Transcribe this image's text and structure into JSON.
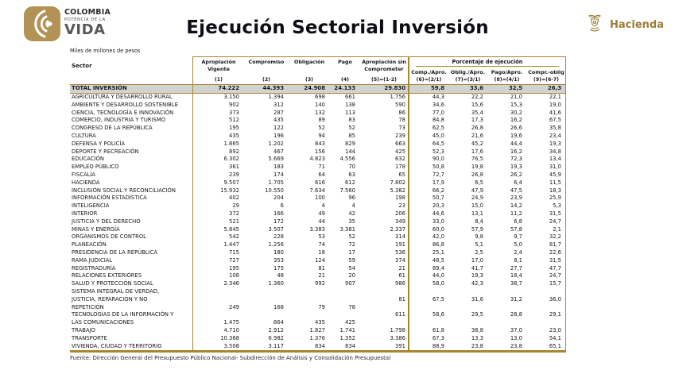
{
  "branding": {
    "colombia_line1": "COLOMBIA",
    "colombia_line2": "POTENCIA DE LA",
    "colombia_line3": "VIDA",
    "hacienda_label": "Hacienda"
  },
  "title": "Ejecución Sectorial Inversión",
  "units_note": "Miles de millones de pesos",
  "source_note": "Fuente: Dirección General del Presupuesto Público Nacional- Subdirección de Análisis y Consolidación Presupuestal",
  "colors": {
    "gold_border": "#A8862F",
    "logo_gold": "#B39355",
    "hacienda_gold": "#9C7C35",
    "total_row_bg": "#D2D2D2",
    "text": "#17171F"
  },
  "table": {
    "col_headers": {
      "sector": "Sector",
      "cols": [
        {
          "name": "Apropiación Vigente",
          "formula": "(1)"
        },
        {
          "name": "Compromiso",
          "formula": "(2)"
        },
        {
          "name": "Obligación",
          "formula": "(3)"
        },
        {
          "name": "Pago",
          "formula": "(4)"
        },
        {
          "name": "Apropiación sin Comprometer",
          "formula": "(5)=(1-2)"
        }
      ],
      "pct_group": {
        "title": "Porcentaje de ejecución",
        "cols": [
          {
            "name": "Comp./Apro.",
            "formula": "(6)=(2/1)"
          },
          {
            "name": "Oblig./Apro.",
            "formula": "(7)=(3/1)"
          },
          {
            "name": "Pago/Apro.",
            "formula": "(8)=(4/1)"
          },
          {
            "name": "Compr.-oblig",
            "formula": "(9)=(6-7)"
          }
        ]
      }
    },
    "total_row": {
      "total": true,
      "sector": [
        "TOTAL INVERSIÓN"
      ],
      "vals": [
        "74.222",
        "44.393",
        "24.908",
        "24.133",
        "29.830"
      ],
      "pcts": [
        "59,8",
        "33,6",
        "32,5",
        "26,3"
      ]
    },
    "rows": [
      {
        "sector": [
          "AGRICULTURA Y DESARROLLO RURAL"
        ],
        "vals": [
          "3.150",
          "1.394",
          "698",
          "661",
          "1.756"
        ],
        "pcts": [
          "44,3",
          "22,2",
          "21,0",
          "22,1"
        ]
      },
      {
        "sector": [
          "AMBIENTE Y DESARROLLO SOSTENIBLE"
        ],
        "vals": [
          "902",
          "312",
          "140",
          "138",
          "590"
        ],
        "pcts": [
          "34,6",
          "15,6",
          "15,3",
          "19,0"
        ]
      },
      {
        "sector": [
          "CIENCIA, TECNOLOGÍA E INNOVACIÓN"
        ],
        "vals": [
          "373",
          "287",
          "132",
          "113",
          "86"
        ],
        "pcts": [
          "77,0",
          "35,4",
          "30,2",
          "41,6"
        ]
      },
      {
        "sector": [
          "COMERCIO, INDUSTRIA Y TURISMO"
        ],
        "vals": [
          "512",
          "435",
          "89",
          "83",
          "78"
        ],
        "pcts": [
          "84,8",
          "17,3",
          "16,2",
          "67,5"
        ]
      },
      {
        "sector": [
          "CONGRESO DE LA REPÚBLICA"
        ],
        "vals": [
          "195",
          "122",
          "52",
          "52",
          "73"
        ],
        "pcts": [
          "62,5",
          "26,8",
          "26,6",
          "35,8"
        ]
      },
      {
        "sector": [
          "CULTURA"
        ],
        "vals": [
          "435",
          "196",
          "94",
          "85",
          "239"
        ],
        "pcts": [
          "45,0",
          "21,6",
          "19,6",
          "23,4"
        ]
      },
      {
        "sector": [
          "DEFENSA Y POLICÍA"
        ],
        "vals": [
          "1.865",
          "1.202",
          "843",
          "829",
          "663"
        ],
        "pcts": [
          "64,5",
          "45,2",
          "44,4",
          "19,3"
        ]
      },
      {
        "sector": [
          "DEPORTE Y RECREACIÓN"
        ],
        "vals": [
          "892",
          "467",
          "156",
          "144",
          "425"
        ],
        "pcts": [
          "52,3",
          "17,6",
          "16,2",
          "34,8"
        ]
      },
      {
        "sector": [
          "EDUCACIÓN"
        ],
        "vals": [
          "6.302",
          "5.669",
          "4.823",
          "4.556",
          "632"
        ],
        "pcts": [
          "90,0",
          "76,5",
          "72,3",
          "13,4"
        ]
      },
      {
        "sector": [
          "EMPLEO PÚBLICO"
        ],
        "vals": [
          "361",
          "183",
          "71",
          "70",
          "178"
        ],
        "pcts": [
          "50,8",
          "19,8",
          "19,3",
          "31,0"
        ]
      },
      {
        "sector": [
          "FISCALÍA"
        ],
        "vals": [
          "239",
          "174",
          "64",
          "63",
          "65"
        ],
        "pcts": [
          "72,7",
          "26,8",
          "26,2",
          "45,9"
        ]
      },
      {
        "sector": [
          "HACIENDA"
        ],
        "vals": [
          "9.507",
          "1.705",
          "616",
          "612",
          "7.802"
        ],
        "pcts": [
          "17,9",
          "6,5",
          "6,4",
          "11,5"
        ]
      },
      {
        "sector": [
          "INCLUSIÓN SOCIAL Y RECONCILIACIÓN"
        ],
        "vals": [
          "15.932",
          "10.550",
          "7.634",
          "7.560",
          "5.382"
        ],
        "pcts": [
          "66,2",
          "47,9",
          "47,5",
          "18,3"
        ]
      },
      {
        "sector": [
          "INFORMACIÓN ESTADÍSTICA"
        ],
        "vals": [
          "402",
          "204",
          "100",
          "96",
          "198"
        ],
        "pcts": [
          "50,7",
          "24,9",
          "23,9",
          "25,9"
        ]
      },
      {
        "sector": [
          "INTELIGENCIA"
        ],
        "vals": [
          "29",
          "6",
          "4",
          "4",
          "23"
        ],
        "pcts": [
          "20,3",
          "15,0",
          "14,2",
          "5,3"
        ]
      },
      {
        "sector": [
          "INTERIOR"
        ],
        "vals": [
          "372",
          "166",
          "49",
          "42",
          "206"
        ],
        "pcts": [
          "44,6",
          "13,1",
          "11,2",
          "31,5"
        ]
      },
      {
        "sector": [
          "JUSTICIA Y DEL DERECHO"
        ],
        "vals": [
          "521",
          "172",
          "44",
          "35",
          "349"
        ],
        "pcts": [
          "33,0",
          "8,4",
          "6,8",
          "24,7"
        ]
      },
      {
        "sector": [
          "MINAS Y ENERGÍA"
        ],
        "vals": [
          "5.845",
          "3.507",
          "3.383",
          "3.381",
          "2.337"
        ],
        "pcts": [
          "60,0",
          "57,9",
          "57,8",
          "2,1"
        ]
      },
      {
        "sector": [
          "ORGANISMOS DE CONTROL"
        ],
        "vals": [
          "542",
          "228",
          "53",
          "52",
          "314"
        ],
        "pcts": [
          "42,0",
          "9,8",
          "9,7",
          "32,2"
        ]
      },
      {
        "sector": [
          "PLANEACIÓN"
        ],
        "vals": [
          "1.447",
          "1.256",
          "74",
          "72",
          "191"
        ],
        "pcts": [
          "86,8",
          "5,1",
          "5,0",
          "81,7"
        ]
      },
      {
        "sector": [
          "PRESIDENCIA DE LA REPÚBLICA"
        ],
        "vals": [
          "715",
          "180",
          "18",
          "17",
          "536"
        ],
        "pcts": [
          "25,1",
          "2,5",
          "2,4",
          "22,6"
        ]
      },
      {
        "sector": [
          "RAMA JUDICIAL"
        ],
        "vals": [
          "727",
          "353",
          "124",
          "59",
          "374"
        ],
        "pcts": [
          "48,5",
          "17,0",
          "8,1",
          "31,5"
        ]
      },
      {
        "sector": [
          "REGISTRADURÍA"
        ],
        "vals": [
          "195",
          "175",
          "81",
          "54",
          "21"
        ],
        "pcts": [
          "89,4",
          "41,7",
          "27,7",
          "47,7"
        ]
      },
      {
        "sector": [
          "RELACIONES EXTERIORES"
        ],
        "vals": [
          "108",
          "48",
          "21",
          "20",
          "61"
        ],
        "pcts": [
          "44,0",
          "19,3",
          "18,4",
          "24,7"
        ]
      },
      {
        "sector": [
          "SALUD Y PROTECCIÓN SOCIAL"
        ],
        "vals": [
          "2.346",
          "1.360",
          "992",
          "907",
          "986"
        ],
        "pcts": [
          "58,0",
          "42,3",
          "38,7",
          "15,7"
        ]
      },
      {
        "sector": [
          "SISTEMA INTEGRAL DE VERDAD,",
          "JUSTICIA, REPARACIÓN Y NO",
          "REPETICIÓN"
        ],
        "vals": [
          "249",
          "168",
          "79",
          "78",
          "81"
        ],
        "pcts": [
          "67,5",
          "31,6",
          "31,2",
          "36,0"
        ],
        "vals_line": 2,
        "pct_line": 1
      },
      {
        "sector": [
          "TECNOLOGÍAS DE LA INFORMACIÓN Y",
          "LAS COMUNICACIONES"
        ],
        "vals": [
          "1.475",
          "864",
          "435",
          "425",
          "611"
        ],
        "pcts": [
          "58,6",
          "29,5",
          "28,8",
          "29,1"
        ],
        "vals_line": 1,
        "pct_line": 0
      },
      {
        "sector": [
          "TRABAJO"
        ],
        "vals": [
          "4.710",
          "2.912",
          "1.827",
          "1.741",
          "1.798"
        ],
        "pcts": [
          "61,8",
          "38,8",
          "37,0",
          "23,0"
        ]
      },
      {
        "sector": [
          "TRANSPORTE"
        ],
        "vals": [
          "10.368",
          "6.982",
          "1.376",
          "1.352",
          "3.386"
        ],
        "pcts": [
          "67,3",
          "13,3",
          "13,0",
          "54,1"
        ]
      },
      {
        "sector": [
          "VIVIENDA, CIUDAD Y TERRITORIO"
        ],
        "vals": [
          "3.508",
          "3.117",
          "834",
          "834",
          "391"
        ],
        "pcts": [
          "88,9",
          "23,8",
          "23,8",
          "65,1"
        ]
      }
    ]
  }
}
